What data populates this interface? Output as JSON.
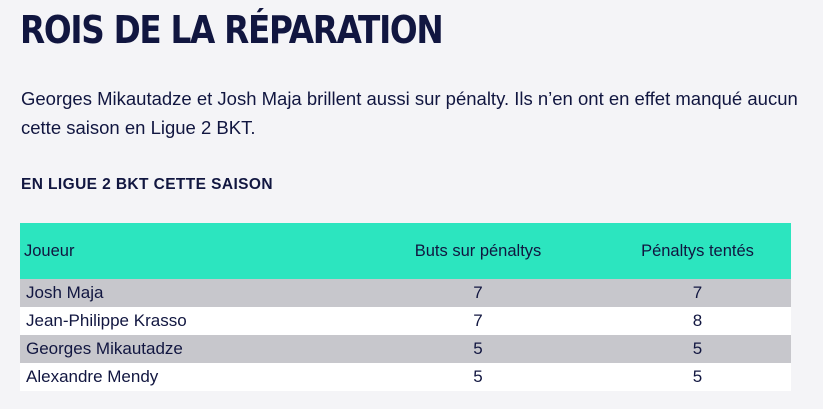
{
  "title": "ROIS DE LA RÉPARATION",
  "intro": "Georges Mikautadze et Josh Maja brillent aussi sur pénalty. Ils n’en ont en effet manqué aucun cette saison en Ligue 2 BKT.",
  "section_label": "EN LIGUE 2 BKT CETTE SAISON",
  "colors": {
    "header_bg": "#2ce5bf",
    "row_shade": "#c7c7cc",
    "text": "#111640"
  },
  "table": {
    "headers": [
      "Joueur",
      "Buts sur pénaltys",
      "Pénaltys tentés"
    ],
    "rows": [
      {
        "player": "Josh Maja",
        "goals": "7",
        "attempts": "7"
      },
      {
        "player": "Jean-Philippe Krasso",
        "goals": "7",
        "attempts": "8"
      },
      {
        "player": "Georges Mikautadze",
        "goals": "5",
        "attempts": "5"
      },
      {
        "player": "Alexandre Mendy",
        "goals": "5",
        "attempts": "5"
      }
    ]
  }
}
